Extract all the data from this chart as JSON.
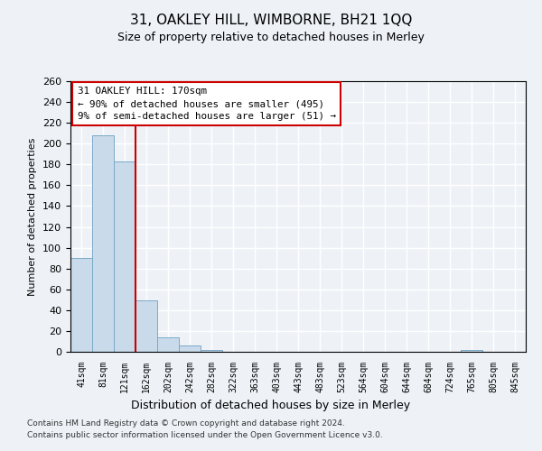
{
  "title": "31, OAKLEY HILL, WIMBORNE, BH21 1QQ",
  "subtitle": "Size of property relative to detached houses in Merley",
  "xlabel": "Distribution of detached houses by size in Merley",
  "ylabel": "Number of detached properties",
  "bar_labels": [
    "41sqm",
    "81sqm",
    "121sqm",
    "162sqm",
    "202sqm",
    "242sqm",
    "282sqm",
    "322sqm",
    "363sqm",
    "403sqm",
    "443sqm",
    "483sqm",
    "523sqm",
    "564sqm",
    "604sqm",
    "644sqm",
    "684sqm",
    "724sqm",
    "765sqm",
    "805sqm",
    "845sqm"
  ],
  "bar_values": [
    90,
    208,
    183,
    49,
    14,
    6,
    2,
    0,
    0,
    0,
    0,
    0,
    0,
    0,
    0,
    0,
    0,
    0,
    2,
    0,
    0
  ],
  "bar_color": "#c9daea",
  "bar_edgecolor": "#7aaac8",
  "ylim": [
    0,
    260
  ],
  "yticks": [
    0,
    20,
    40,
    60,
    80,
    100,
    120,
    140,
    160,
    180,
    200,
    220,
    240,
    260
  ],
  "vline_color": "#cc0000",
  "vline_index": 2.5,
  "annotation_box_text": "31 OAKLEY HILL: 170sqm\n← 90% of detached houses are smaller (495)\n9% of semi-detached houses are larger (51) →",
  "background_color": "#eef2f7",
  "grid_color": "#ffffff",
  "footer_line1": "Contains HM Land Registry data © Crown copyright and database right 2024.",
  "footer_line2": "Contains public sector information licensed under the Open Government Licence v3.0."
}
